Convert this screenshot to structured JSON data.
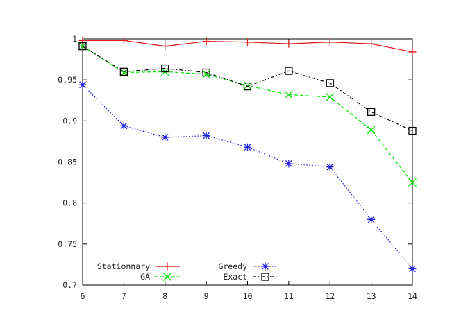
{
  "chart_data": {
    "type": "line",
    "title": "",
    "xlabel": "",
    "ylabel": "",
    "x": [
      6,
      7,
      8,
      9,
      10,
      11,
      12,
      13,
      14
    ],
    "xlim": [
      6,
      14
    ],
    "ylim": [
      0.7,
      1.0
    ],
    "xticks": [
      "6",
      "7",
      "8",
      "9",
      "10",
      "11",
      "12",
      "13",
      "14"
    ],
    "yticks": [
      "0.7",
      "0.75",
      "0.8",
      "0.85",
      "0.9",
      "0.95",
      "1"
    ],
    "grid": false,
    "legend_position": "bottom-left",
    "series": [
      {
        "name": "Stationnary",
        "color": "#e41a1c",
        "marker": "plus",
        "dash": "solid",
        "values": [
          0.998,
          0.998,
          0.991,
          0.997,
          0.996,
          0.994,
          0.996,
          0.994,
          0.984
        ]
      },
      {
        "name": "GA",
        "color": "#00e000",
        "marker": "cross",
        "dash": "dashed",
        "values": [
          0.991,
          0.959,
          0.96,
          0.957,
          0.943,
          0.932,
          0.929,
          0.889,
          0.825
        ]
      },
      {
        "name": "Greedy",
        "color": "#1f1fe0",
        "marker": "star",
        "dash": "dotted",
        "values": [
          0.944,
          0.894,
          0.88,
          0.882,
          0.868,
          0.848,
          0.844,
          0.78,
          0.72
        ]
      },
      {
        "name": "Exact",
        "color": "#000000",
        "marker": "square",
        "dash": "dashdot",
        "values": [
          0.991,
          0.96,
          0.964,
          0.959,
          0.942,
          0.961,
          0.946,
          0.911,
          0.888
        ]
      }
    ]
  }
}
